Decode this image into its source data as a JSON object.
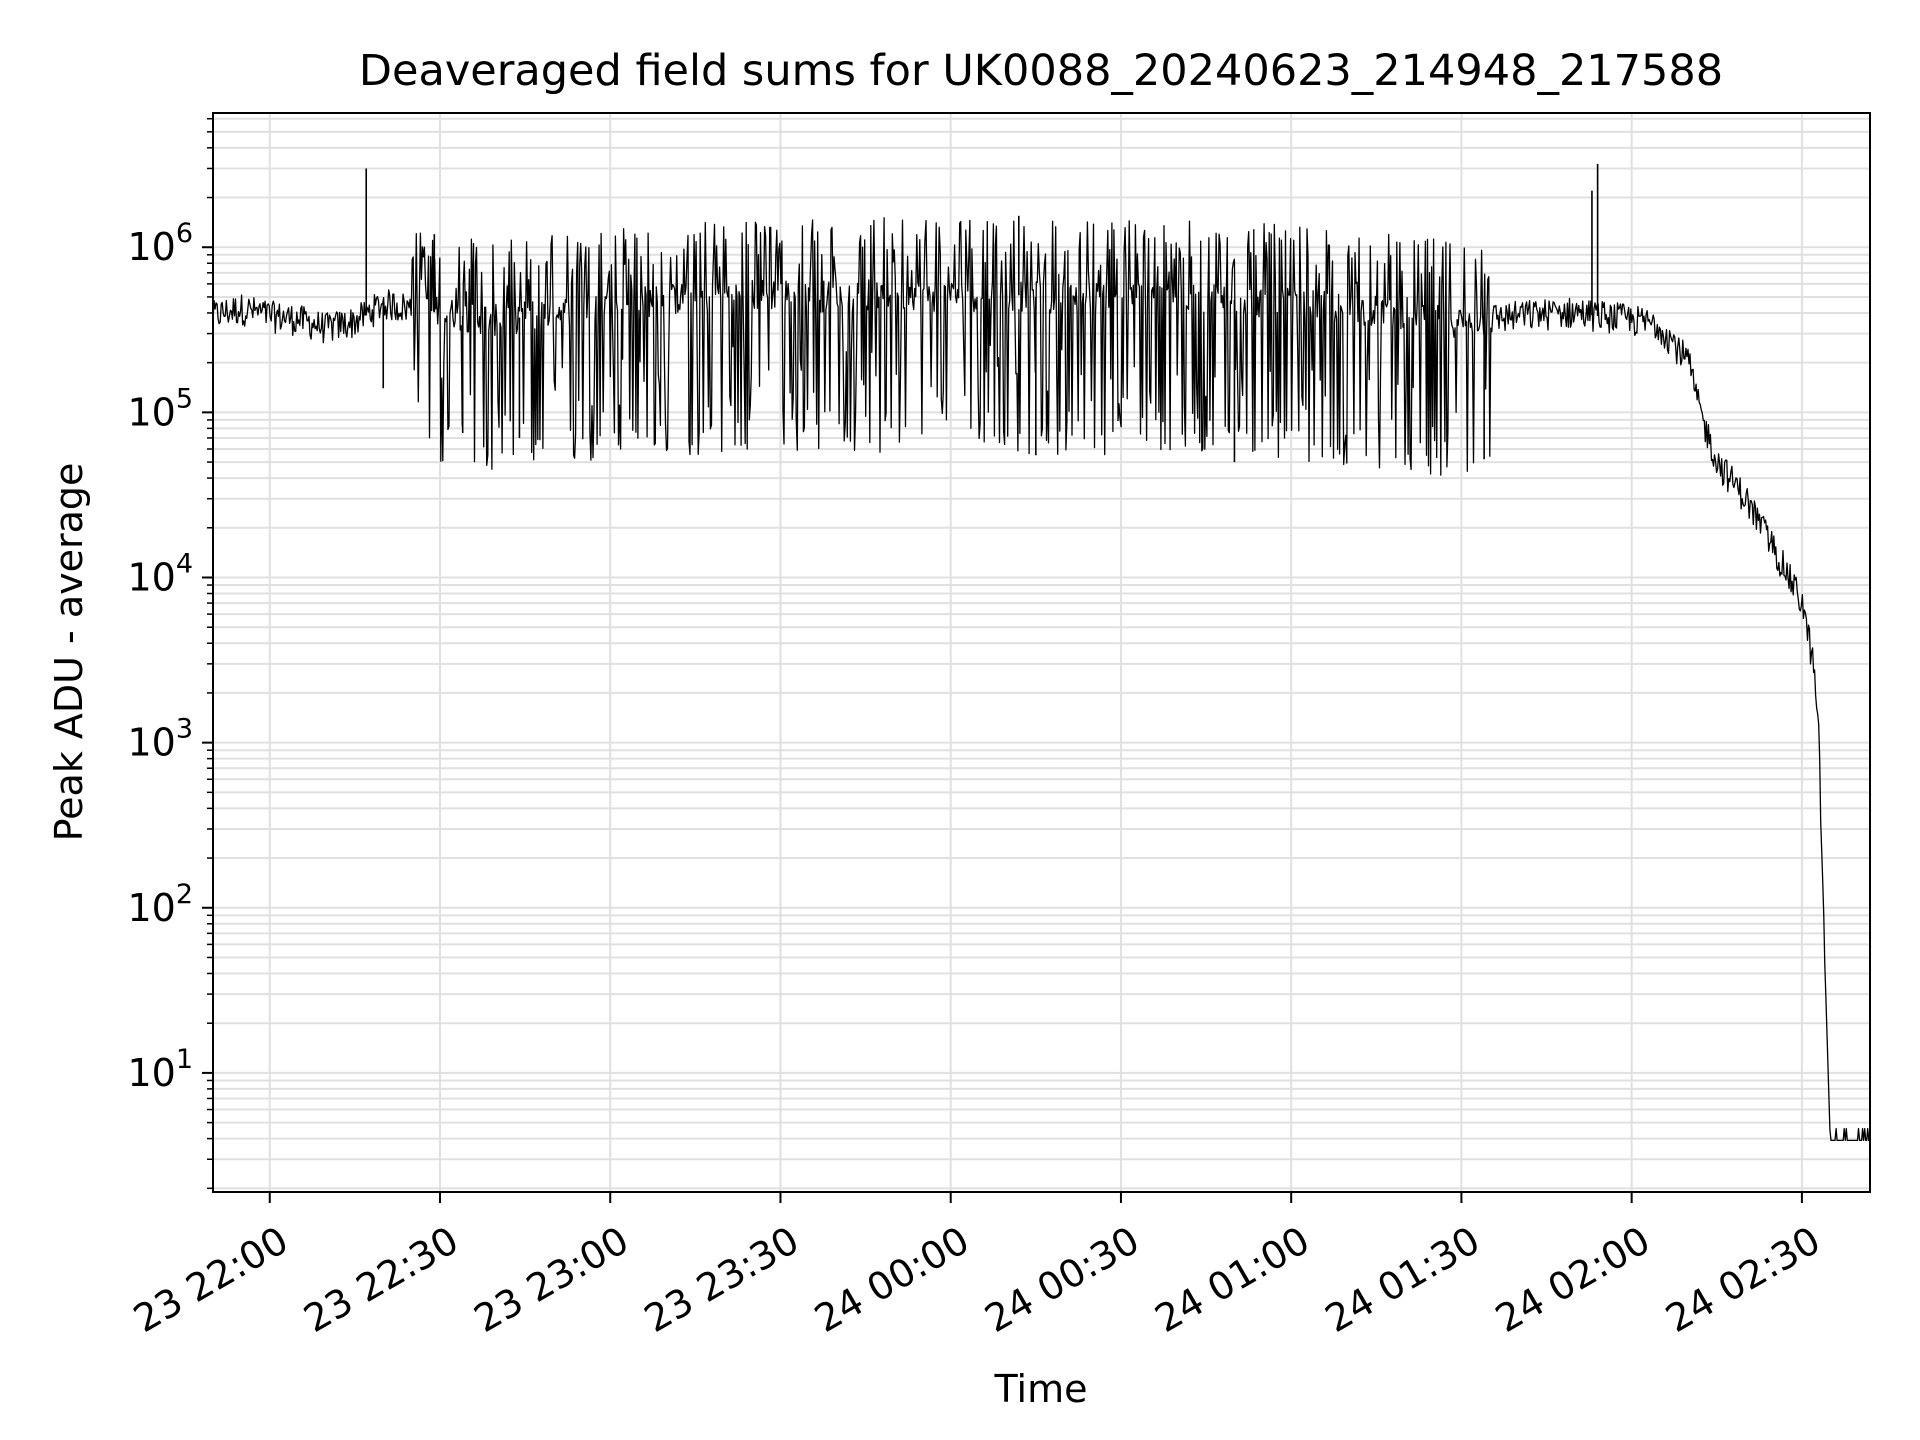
{
  "chart_data": {
    "type": "line",
    "title": "Deaveraged field sums for UK0088_20240623_214948_217588",
    "xlabel": "Time",
    "ylabel": "Peak ADU - average",
    "y_scale": "log",
    "grid": true,
    "x_tick_labels": [
      "23 22:00",
      "23 22:30",
      "23 23:00",
      "23 23:30",
      "24 00:00",
      "24 00:30",
      "24 01:00",
      "24 01:30",
      "24 02:00",
      "24 02:30"
    ],
    "y_ticks": [
      {
        "value": 10,
        "base": "10",
        "exp": "1"
      },
      {
        "value": 100,
        "base": "10",
        "exp": "2"
      },
      {
        "value": 1000,
        "base": "10",
        "exp": "3"
      },
      {
        "value": 10000,
        "base": "10",
        "exp": "4"
      },
      {
        "value": 100000,
        "base": "10",
        "exp": "5"
      },
      {
        "value": 1000000,
        "base": "10",
        "exp": "6"
      }
    ],
    "x_range": [
      "2024-06-23 21:50",
      "2024-06-24 02:42"
    ],
    "ylim": [
      1.9,
      6500000
    ],
    "series": [
      {
        "color": "#000000",
        "points": [
          [
            "2024-06-23 21:50",
            380000
          ],
          [
            "2024-06-23 21:55",
            420000
          ],
          [
            "2024-06-23 22:00",
            380000
          ],
          [
            "2024-06-23 22:05",
            360000
          ],
          [
            "2024-06-23 22:10",
            320000
          ],
          [
            "2024-06-23 22:15",
            350000
          ],
          [
            "2024-06-23 22:20",
            450000
          ],
          [
            "2024-06-23 22:25",
            420000
          ],
          [
            "2024-06-23 22:30",
            400000
          ],
          [
            "2024-06-23 22:40",
            360000
          ],
          [
            "2024-06-23 22:50",
            400000
          ],
          [
            "2024-06-23 23:00",
            450000
          ],
          [
            "2024-06-23 23:10",
            480000
          ],
          [
            "2024-06-23 23:20",
            500000
          ],
          [
            "2024-06-23 23:30",
            520000
          ],
          [
            "2024-06-23 23:40",
            500000
          ],
          [
            "2024-06-23 23:50",
            520000
          ],
          [
            "2024-06-24 00:00",
            500000
          ],
          [
            "2024-06-24 00:10",
            520000
          ],
          [
            "2024-06-24 00:20",
            480000
          ],
          [
            "2024-06-24 00:30",
            500000
          ],
          [
            "2024-06-24 00:40",
            480000
          ],
          [
            "2024-06-24 00:50",
            480000
          ],
          [
            "2024-06-24 01:00",
            450000
          ],
          [
            "2024-06-24 01:10",
            420000
          ],
          [
            "2024-06-24 01:20",
            400000
          ],
          [
            "2024-06-24 01:30",
            350000
          ],
          [
            "2024-06-24 01:40",
            380000
          ],
          [
            "2024-06-24 01:50",
            400000
          ],
          [
            "2024-06-24 02:00",
            360000
          ],
          [
            "2024-06-24 02:05",
            330000
          ],
          [
            "2024-06-24 02:10",
            200000
          ],
          [
            "2024-06-24 02:12",
            100000
          ],
          [
            "2024-06-24 02:15",
            50000
          ],
          [
            "2024-06-24 02:20",
            30000
          ],
          [
            "2024-06-24 02:25",
            15000
          ],
          [
            "2024-06-24 02:30",
            7000
          ],
          [
            "2024-06-24 02:32",
            3000
          ],
          [
            "2024-06-24 02:33",
            1000
          ],
          [
            "2024-06-24 02:34",
            50
          ],
          [
            "2024-06-24 02:35",
            3.9
          ],
          [
            "2024-06-24 02:42",
            3.9
          ]
        ],
        "spikes": [
          [
            "2024-06-23 22:17",
            3000000
          ],
          [
            "2024-06-23 22:29",
            1200000
          ],
          [
            "2024-06-24 01:53",
            2200000
          ],
          [
            "2024-06-24 01:54",
            3200000
          ],
          [
            "2024-06-24 00:12",
            1550000
          ],
          [
            "2024-06-23 22:20",
            140000
          ],
          [
            "2024-06-23 22:34",
            75000
          ],
          [
            "2024-06-23 22:44",
            70000
          ],
          [
            "2024-06-24 00:15",
            55000
          ],
          [
            "2024-06-24 00:50",
            50000
          ],
          [
            "2024-06-24 01:34",
            52000
          ]
        ]
      }
    ]
  }
}
